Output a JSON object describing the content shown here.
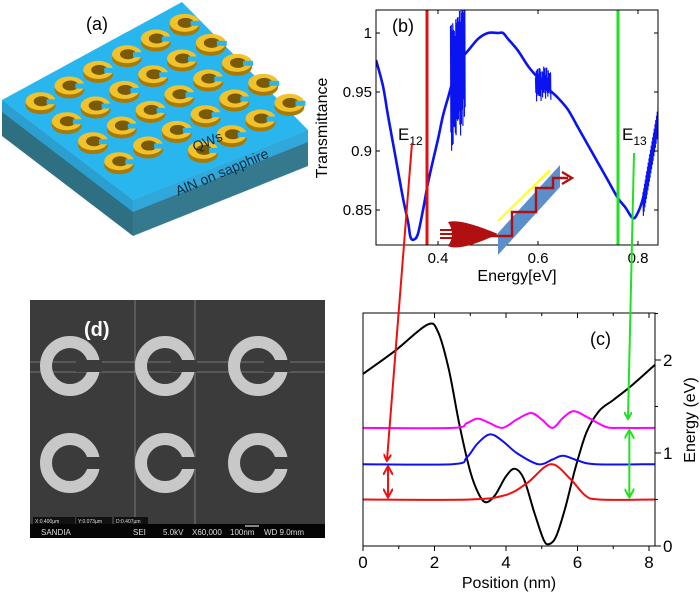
{
  "panels": {
    "a": {
      "label": "(a)",
      "layer_top": "QWs",
      "layer_bottom": "AlN on sapphire",
      "colors": {
        "top_face": "#29b6ef",
        "qw_side": "#2a9fd0",
        "substrate_side": "#2e6f82",
        "rings": "#e8b520"
      }
    },
    "d": {
      "label": "(d)",
      "sem_info": {
        "x": "X:0.400µm",
        "y": "Y:0.073µm",
        "d": "D:0.407µm"
      },
      "sem_footer": {
        "org": "SANDIA",
        "mode": "SEI",
        "voltage": "5.0kV",
        "magnification": "X60,000",
        "scale": "100nm",
        "wd": "WD 9.0mm"
      }
    }
  },
  "chart_data": [
    {
      "panel": "(b)",
      "type": "line",
      "xlabel": "Energy[eV]",
      "ylabel": "Transmittance",
      "xlim": [
        0.276,
        0.84
      ],
      "ylim": [
        0.82,
        1.02
      ],
      "xticks": [
        "0.4",
        "0.6",
        "0.8"
      ],
      "xtick_values": [
        0.4,
        0.6,
        0.8
      ],
      "yticks": [
        "0.85",
        "0.9",
        "0.95",
        "1"
      ],
      "ytick_values": [
        0.85,
        0.9,
        0.95,
        1.0
      ],
      "grid": false,
      "series": [
        {
          "color": "#0a14f0",
          "x": [
            0.276,
            0.29,
            0.3,
            0.315,
            0.33,
            0.34,
            0.345,
            0.352,
            0.36,
            0.37,
            0.38,
            0.39,
            0.4,
            0.41,
            0.42,
            0.43,
            0.44,
            0.45,
            0.46,
            0.48,
            0.5,
            0.52,
            0.53,
            0.54,
            0.56,
            0.58,
            0.6,
            0.62,
            0.64,
            0.66,
            0.68,
            0.7,
            0.72,
            0.74,
            0.76,
            0.775,
            0.79,
            0.8,
            0.81,
            0.82,
            0.83,
            0.84
          ],
          "y": [
            0.977,
            0.955,
            0.93,
            0.895,
            0.86,
            0.84,
            0.827,
            0.825,
            0.83,
            0.85,
            0.873,
            0.892,
            0.91,
            0.93,
            0.945,
            0.96,
            0.972,
            0.98,
            0.985,
            0.995,
            1.0,
            1.0,
            1.0,
            0.995,
            0.985,
            0.972,
            0.962,
            0.953,
            0.945,
            0.935,
            0.92,
            0.905,
            0.89,
            0.875,
            0.86,
            0.852,
            0.843,
            0.848,
            0.86,
            0.88,
            0.9,
            0.93
          ]
        }
      ],
      "vertical_lines": [
        {
          "x": 0.378,
          "color": "#e01010"
        },
        {
          "x": 0.76,
          "color": "#22e022"
        }
      ],
      "annotations": [
        {
          "text": "E",
          "sub": "12",
          "color": "#e01010"
        },
        {
          "text": "E",
          "sub": "13",
          "color": "#22e022"
        }
      ]
    },
    {
      "panel": "(c)",
      "type": "line",
      "xlabel": "Position (nm)",
      "ylabel": "Energy (eV)",
      "xlim": [
        0,
        8.17
      ],
      "ylim": [
        0,
        2.5
      ],
      "xticks": [
        "0",
        "2",
        "4",
        "6",
        "8"
      ],
      "xtick_values": [
        0,
        2,
        4,
        6,
        8
      ],
      "yticks": [
        "0",
        "1",
        "2"
      ],
      "ytick_values": [
        0,
        1,
        2
      ],
      "yaxis_side": "right",
      "grid": false,
      "series": [
        {
          "color": "#000000",
          "x": [
            0,
            0.9,
            1.8,
            2.1,
            2.4,
            2.7,
            3.0,
            3.25,
            3.45,
            3.7,
            4.0,
            4.25,
            4.5,
            4.8,
            5.05,
            5.2,
            5.4,
            5.65,
            5.95,
            6.25,
            6.6,
            7.0,
            7.5,
            8.17
          ],
          "y": [
            1.85,
            2.1,
            2.38,
            2.3,
            1.9,
            1.3,
            0.8,
            0.55,
            0.47,
            0.55,
            0.75,
            0.83,
            0.72,
            0.35,
            0.07,
            0.02,
            0.1,
            0.4,
            0.85,
            1.22,
            1.45,
            1.57,
            1.72,
            1.95
          ]
        },
        {
          "color": "#ff00ff",
          "x": [
            0,
            2.5,
            2.9,
            3.2,
            3.5,
            3.9,
            4.3,
            4.7,
            5.0,
            5.3,
            5.6,
            5.9,
            6.3,
            6.8,
            7.2,
            8.17
          ],
          "y": [
            1.27,
            1.27,
            1.32,
            1.37,
            1.33,
            1.27,
            1.36,
            1.43,
            1.36,
            1.27,
            1.38,
            1.45,
            1.38,
            1.28,
            1.27,
            1.27
          ]
        },
        {
          "color": "#1010ee",
          "x": [
            0,
            2.5,
            2.9,
            3.2,
            3.55,
            3.9,
            4.3,
            4.9,
            5.3,
            5.6,
            6.0,
            6.5,
            8.17
          ],
          "y": [
            0.88,
            0.88,
            0.95,
            1.1,
            1.2,
            1.13,
            1.0,
            0.88,
            0.93,
            0.97,
            0.92,
            0.88,
            0.88
          ]
        },
        {
          "color": "#ee1010",
          "x": [
            0,
            3.0,
            4.0,
            4.6,
            5.25,
            5.8,
            6.2,
            6.6,
            8.17
          ],
          "y": [
            0.5,
            0.5,
            0.55,
            0.68,
            0.88,
            0.72,
            0.55,
            0.5,
            0.5
          ]
        }
      ],
      "transitions": [
        {
          "x": 0.7,
          "from": 0.5,
          "to": 0.88,
          "color": "#ee1010"
        },
        {
          "x": 7.45,
          "from": 0.5,
          "to": 1.27,
          "color": "#22e022"
        }
      ]
    }
  ]
}
